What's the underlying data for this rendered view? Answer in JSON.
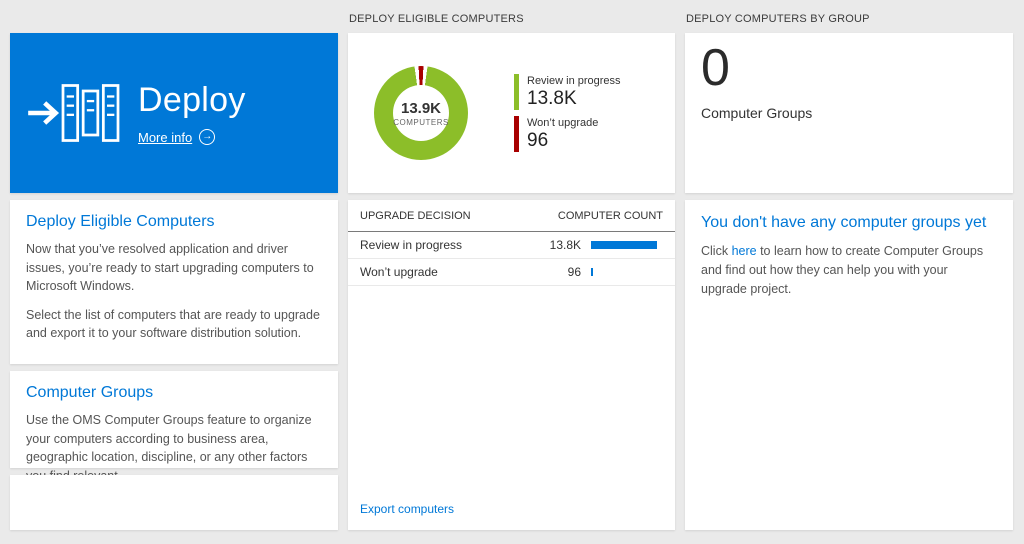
{
  "colors": {
    "accent_blue": "#0078d7",
    "donut_green": "#8cbe29",
    "donut_red": "#a80000",
    "bar_blue": "#0078d7"
  },
  "left": {
    "tile": {
      "title": "Deploy",
      "more_info_label": "More info"
    },
    "sections": {
      "eligible": {
        "heading": "Deploy Eligible Computers",
        "para1": "Now that you’ve resolved application and driver issues, you’re ready to start upgrading computers to Microsoft Windows.",
        "para2": "Select the list of computers that are ready to upgrade and export it to your software distribution solution."
      },
      "groups": {
        "heading": "Computer Groups",
        "para1": "Use the OMS Computer Groups feature to organize your computers according to business area, geographic location, discipline, or any other factors you find relevant."
      }
    }
  },
  "middle": {
    "header": "DEPLOY ELIGIBLE COMPUTERS",
    "donut": {
      "center_value": "13.9K",
      "center_label": "COMPUTERS",
      "legend": [
        {
          "label": "Review in progress",
          "value": "13.8K",
          "color": "#8cbe29"
        },
        {
          "label": "Won’t upgrade",
          "value": "96",
          "color": "#a80000"
        }
      ]
    },
    "table": {
      "columns": [
        "UPGRADE DECISION",
        "COMPUTER COUNT"
      ],
      "rows": [
        {
          "label": "Review in progress",
          "value": "13.8K",
          "bar_pct": 92
        },
        {
          "label": "Won’t upgrade",
          "value": "96",
          "bar_pct": 3
        }
      ]
    },
    "export_link": "Export computers"
  },
  "right": {
    "header": "DEPLOY COMPUTERS BY GROUP",
    "count": "0",
    "count_label": "Computer Groups",
    "empty_state": {
      "heading": "You don't have any computer groups yet",
      "text_before_link": "Click ",
      "link_text": "here",
      "text_after_link": " to learn how to create Computer Groups and find out how they can help you with your upgrade project."
    }
  },
  "chart_data": {
    "type": "pie",
    "title": "DEPLOY ELIGIBLE COMPUTERS",
    "categories": [
      "Review in progress",
      "Won't upgrade"
    ],
    "values": [
      13800,
      96
    ],
    "center_total_value": "13.9K",
    "center_total_label": "COMPUTERS",
    "legend_position": "right"
  }
}
